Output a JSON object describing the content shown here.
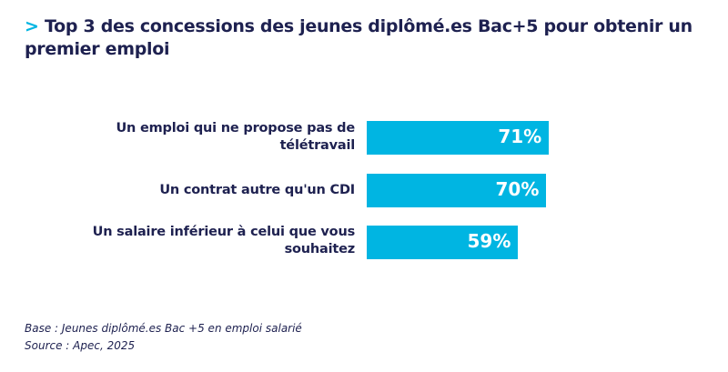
{
  "chart_data": {
    "type": "bar",
    "orientation": "horizontal",
    "title": "Top 3 des concessions des jeunes diplômé.es Bac+5 pour obtenir un premier emploi",
    "title_marker": ">",
    "categories": [
      "Un emploi qui ne propose pas de télétravail",
      "Un contrat autre qu'un CDI",
      "Un salaire inférieur à celui que vous souhaitez"
    ],
    "values": [
      71,
      70,
      59
    ],
    "value_labels": [
      "71%",
      "70%",
      "59%"
    ],
    "unit": "%",
    "xlim": [
      0,
      100
    ],
    "grid": false,
    "bar_color": "#00b5e2",
    "text_color": "#1e2150"
  },
  "footnotes": {
    "base": "Base : Jeunes diplômé.es Bac +5 en emploi salarié",
    "source": "Source : Apec, 2025"
  }
}
